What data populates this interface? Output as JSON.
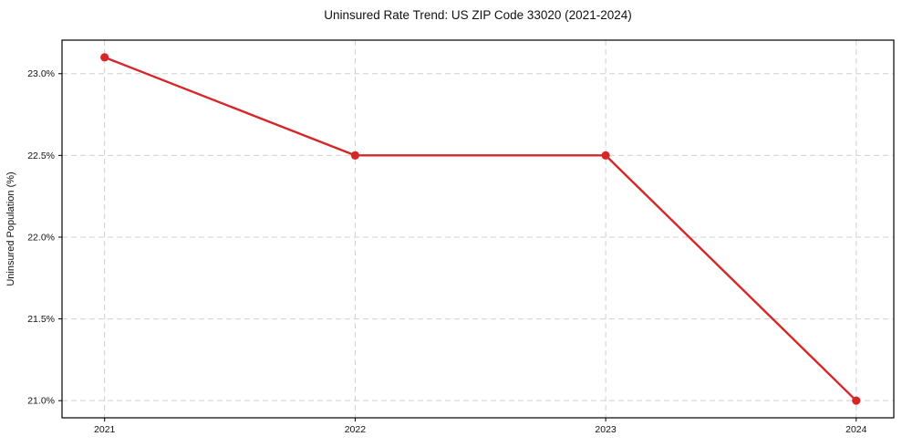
{
  "chart_data": {
    "type": "line",
    "title": "Uninsured Rate Trend: US ZIP Code 33020 (2021-2024)",
    "xlabel": "",
    "ylabel": "Uninsured Population (%)",
    "x": [
      2021,
      2022,
      2023,
      2024
    ],
    "values": [
      23.1,
      22.5,
      22.5,
      21.0
    ],
    "xticks": [
      {
        "value": 2021,
        "label": "2021"
      },
      {
        "value": 2022,
        "label": "2022"
      },
      {
        "value": 2023,
        "label": "2023"
      },
      {
        "value": 2024,
        "label": "2024"
      }
    ],
    "yticks": [
      {
        "value": 23.0,
        "label": "23.0%"
      },
      {
        "value": 22.5,
        "label": "22.5%"
      },
      {
        "value": 22.0,
        "label": "22.0%"
      },
      {
        "value": 21.5,
        "label": "21.5%"
      },
      {
        "value": 21.0,
        "label": "21.0%"
      }
    ],
    "xlim": [
      2020.83,
      2024.15
    ],
    "ylim": [
      20.895,
      23.205
    ],
    "grid": true,
    "grid_style": "dashed",
    "legend": false,
    "line_color": "#d62728",
    "marker": "circle",
    "grid_color": "#d0d0d0",
    "spine_color": "#000000",
    "background_color": "#ffffff"
  }
}
